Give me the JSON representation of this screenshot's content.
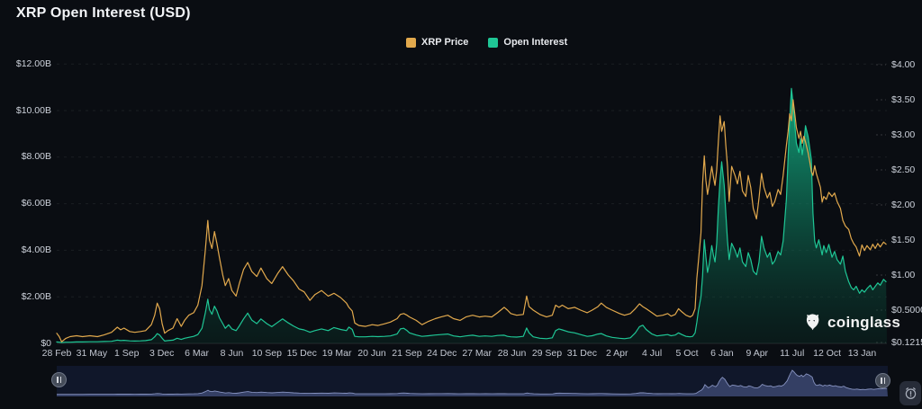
{
  "window": {
    "title": "XRP Open Interest (USD)"
  },
  "legend": {
    "items": [
      {
        "label": "XRP Price",
        "color": "#E2A94D"
      },
      {
        "label": "Open Interest",
        "color": "#1FC695"
      }
    ]
  },
  "watermark": {
    "text": "coinglass"
  },
  "colors": {
    "background": "#0A0D12",
    "price_line": "#E2A94D",
    "open_interest_line": "#1FC695",
    "grid": "rgba(255,255,255,0.07)",
    "axis_text": "#CDD2DB",
    "navigator_bg": "#10172A",
    "navigator_area": "#39446A",
    "navigator_line": "#8793C0"
  },
  "chart_data": {
    "type": "line",
    "title": "XRP Open Interest (USD)",
    "legend_position": "top-center",
    "grid": "horizontal-dashed",
    "x_axis": {
      "tick_labels": [
        "28 Feb",
        "31 May",
        "1 Sep",
        "3 Dec",
        "6 Mar",
        "8 Jun",
        "10 Sep",
        "15 Dec",
        "19 Mar",
        "20 Jun",
        "21 Sep",
        "24 Dec",
        "27 Mar",
        "28 Jun",
        "29 Sep",
        "31 Dec",
        "2 Apr",
        "4 Jul",
        "5 Oct",
        "6 Jan",
        "9 Apr",
        "11 Jul",
        "12 Oct",
        "13 Jan"
      ]
    },
    "left_axis": {
      "tick_labels": [
        "$12.00B",
        "$10.00B",
        "$8.00B",
        "$6.00B",
        "$4.00B",
        "$2.00B",
        "$0"
      ],
      "tick_values_billion": [
        12,
        10,
        8,
        6,
        4,
        2,
        0
      ]
    },
    "right_axis": {
      "tick_labels": [
        "$4.00",
        "$3.50",
        "$3.00",
        "$2.50",
        "$2.00",
        "$1.50",
        "$1.00",
        "$0.5000",
        "$0.1215"
      ],
      "tick_values": [
        4.0,
        3.5,
        3.0,
        2.5,
        2.0,
        1.5,
        1.0,
        0.5,
        0.1215
      ]
    },
    "series": [
      {
        "name": "XRP Price",
        "color": "#E2A94D",
        "axis": "right",
        "unit": "USD"
      },
      {
        "name": "Open Interest",
        "color": "#1FC695",
        "axis": "left",
        "unit": "USD billions",
        "area_fill": true
      }
    ],
    "points_format": [
      "time_fraction",
      "xrp_price_usd",
      "open_interest_usd_billions"
    ],
    "points": [
      [
        0.0,
        0.23,
        0.06
      ],
      [
        0.003,
        0.19,
        0.05
      ],
      [
        0.006,
        0.13,
        0.04
      ],
      [
        0.011,
        0.17,
        0.05
      ],
      [
        0.016,
        0.19,
        0.05
      ],
      [
        0.024,
        0.2,
        0.06
      ],
      [
        0.031,
        0.19,
        0.06
      ],
      [
        0.04,
        0.2,
        0.07
      ],
      [
        0.049,
        0.19,
        0.07
      ],
      [
        0.057,
        0.21,
        0.08
      ],
      [
        0.066,
        0.24,
        0.09
      ],
      [
        0.073,
        0.3,
        0.14
      ],
      [
        0.077,
        0.27,
        0.12
      ],
      [
        0.081,
        0.29,
        0.13
      ],
      [
        0.088,
        0.25,
        0.11
      ],
      [
        0.094,
        0.24,
        0.1
      ],
      [
        0.101,
        0.25,
        0.11
      ],
      [
        0.107,
        0.26,
        0.12
      ],
      [
        0.114,
        0.33,
        0.16
      ],
      [
        0.118,
        0.44,
        0.28
      ],
      [
        0.121,
        0.6,
        0.42
      ],
      [
        0.124,
        0.52,
        0.36
      ],
      [
        0.127,
        0.34,
        0.22
      ],
      [
        0.13,
        0.23,
        0.1
      ],
      [
        0.134,
        0.26,
        0.12
      ],
      [
        0.14,
        0.29,
        0.14
      ],
      [
        0.145,
        0.4,
        0.22
      ],
      [
        0.15,
        0.31,
        0.17
      ],
      [
        0.154,
        0.38,
        0.22
      ],
      [
        0.159,
        0.44,
        0.26
      ],
      [
        0.165,
        0.47,
        0.3
      ],
      [
        0.17,
        0.57,
        0.38
      ],
      [
        0.175,
        0.85,
        0.65
      ],
      [
        0.179,
        1.35,
        1.3
      ],
      [
        0.182,
        1.78,
        1.9
      ],
      [
        0.184,
        1.5,
        1.45
      ],
      [
        0.187,
        1.38,
        1.25
      ],
      [
        0.19,
        1.62,
        1.6
      ],
      [
        0.193,
        1.45,
        1.4
      ],
      [
        0.196,
        1.25,
        1.1
      ],
      [
        0.2,
        1.0,
        0.85
      ],
      [
        0.203,
        0.85,
        0.65
      ],
      [
        0.207,
        0.95,
        0.8
      ],
      [
        0.211,
        0.78,
        0.62
      ],
      [
        0.216,
        0.7,
        0.55
      ],
      [
        0.22,
        0.88,
        0.75
      ],
      [
        0.225,
        1.08,
        1.05
      ],
      [
        0.23,
        1.18,
        1.3
      ],
      [
        0.235,
        1.05,
        1.0
      ],
      [
        0.241,
        0.98,
        0.85
      ],
      [
        0.246,
        1.1,
        1.05
      ],
      [
        0.253,
        0.95,
        0.85
      ],
      [
        0.259,
        0.88,
        0.72
      ],
      [
        0.266,
        1.02,
        0.9
      ],
      [
        0.272,
        1.12,
        1.05
      ],
      [
        0.279,
        1.0,
        0.88
      ],
      [
        0.285,
        0.92,
        0.75
      ],
      [
        0.292,
        0.8,
        0.62
      ],
      [
        0.298,
        0.76,
        0.58
      ],
      [
        0.305,
        0.64,
        0.48
      ],
      [
        0.311,
        0.72,
        0.55
      ],
      [
        0.319,
        0.78,
        0.62
      ],
      [
        0.327,
        0.7,
        0.55
      ],
      [
        0.334,
        0.74,
        0.68
      ],
      [
        0.342,
        0.68,
        0.6
      ],
      [
        0.349,
        0.6,
        0.55
      ],
      [
        0.352,
        0.54,
        0.7
      ],
      [
        0.356,
        0.49,
        0.6
      ],
      [
        0.359,
        0.35,
        0.3
      ],
      [
        0.364,
        0.32,
        0.28
      ],
      [
        0.372,
        0.31,
        0.28
      ],
      [
        0.38,
        0.33,
        0.3
      ],
      [
        0.387,
        0.32,
        0.29
      ],
      [
        0.395,
        0.34,
        0.3
      ],
      [
        0.402,
        0.36,
        0.32
      ],
      [
        0.41,
        0.4,
        0.4
      ],
      [
        0.414,
        0.45,
        0.62
      ],
      [
        0.418,
        0.46,
        0.65
      ],
      [
        0.422,
        0.44,
        0.55
      ],
      [
        0.425,
        0.42,
        0.45
      ],
      [
        0.433,
        0.38,
        0.36
      ],
      [
        0.44,
        0.33,
        0.3
      ],
      [
        0.448,
        0.37,
        0.33
      ],
      [
        0.456,
        0.4,
        0.36
      ],
      [
        0.463,
        0.42,
        0.38
      ],
      [
        0.471,
        0.44,
        0.4
      ],
      [
        0.478,
        0.4,
        0.32
      ],
      [
        0.486,
        0.38,
        0.28
      ],
      [
        0.493,
        0.42,
        0.32
      ],
      [
        0.501,
        0.44,
        0.35
      ],
      [
        0.509,
        0.42,
        0.3
      ],
      [
        0.516,
        0.43,
        0.32
      ],
      [
        0.524,
        0.42,
        0.3
      ],
      [
        0.531,
        0.47,
        0.34
      ],
      [
        0.539,
        0.54,
        0.35
      ],
      [
        0.543,
        0.5,
        0.3
      ],
      [
        0.547,
        0.46,
        0.28
      ],
      [
        0.554,
        0.44,
        0.27
      ],
      [
        0.562,
        0.45,
        0.3
      ],
      [
        0.566,
        0.7,
        0.66
      ],
      [
        0.569,
        0.55,
        0.45
      ],
      [
        0.574,
        0.5,
        0.28
      ],
      [
        0.582,
        0.45,
        0.22
      ],
      [
        0.59,
        0.42,
        0.2
      ],
      [
        0.597,
        0.44,
        0.24
      ],
      [
        0.601,
        0.57,
        0.55
      ],
      [
        0.605,
        0.54,
        0.62
      ],
      [
        0.609,
        0.57,
        0.58
      ],
      [
        0.616,
        0.52,
        0.5
      ],
      [
        0.624,
        0.54,
        0.45
      ],
      [
        0.631,
        0.5,
        0.38
      ],
      [
        0.639,
        0.47,
        0.3
      ],
      [
        0.645,
        0.5,
        0.33
      ],
      [
        0.652,
        0.55,
        0.4
      ],
      [
        0.656,
        0.6,
        0.42
      ],
      [
        0.662,
        0.54,
        0.32
      ],
      [
        0.669,
        0.5,
        0.26
      ],
      [
        0.678,
        0.46,
        0.22
      ],
      [
        0.684,
        0.44,
        0.2
      ],
      [
        0.691,
        0.46,
        0.24
      ],
      [
        0.697,
        0.52,
        0.45
      ],
      [
        0.702,
        0.59,
        0.72
      ],
      [
        0.706,
        0.55,
        0.78
      ],
      [
        0.71,
        0.52,
        0.6
      ],
      [
        0.717,
        0.47,
        0.4
      ],
      [
        0.723,
        0.43,
        0.32
      ],
      [
        0.73,
        0.44,
        0.35
      ],
      [
        0.736,
        0.46,
        0.38
      ],
      [
        0.74,
        0.43,
        0.33
      ],
      [
        0.745,
        0.45,
        0.36
      ],
      [
        0.749,
        0.52,
        0.45
      ],
      [
        0.753,
        0.48,
        0.38
      ],
      [
        0.758,
        0.44,
        0.3
      ],
      [
        0.763,
        0.42,
        0.28
      ],
      [
        0.766,
        0.44,
        0.3
      ],
      [
        0.769,
        0.52,
        0.45
      ],
      [
        0.771,
        0.95,
        0.9
      ],
      [
        0.773,
        1.2,
        1.4
      ],
      [
        0.776,
        1.6,
        2.0
      ],
      [
        0.778,
        2.3,
        2.9
      ],
      [
        0.78,
        2.7,
        4.45
      ],
      [
        0.782,
        2.35,
        3.7
      ],
      [
        0.784,
        2.15,
        3.05
      ],
      [
        0.786,
        2.3,
        3.4
      ],
      [
        0.789,
        2.55,
        4.2
      ],
      [
        0.791,
        2.4,
        3.8
      ],
      [
        0.793,
        2.28,
        3.5
      ],
      [
        0.795,
        2.5,
        4.3
      ],
      [
        0.797,
        2.9,
        5.8
      ],
      [
        0.799,
        3.27,
        7.0
      ],
      [
        0.801,
        3.05,
        7.8
      ],
      [
        0.804,
        3.19,
        6.8
      ],
      [
        0.806,
        2.85,
        5.6
      ],
      [
        0.808,
        2.55,
        4.4
      ],
      [
        0.81,
        2.05,
        3.6
      ],
      [
        0.813,
        2.55,
        4.3
      ],
      [
        0.817,
        2.42,
        4.0
      ],
      [
        0.82,
        2.3,
        3.7
      ],
      [
        0.823,
        2.48,
        4.1
      ],
      [
        0.826,
        2.2,
        3.5
      ],
      [
        0.83,
        2.12,
        3.3
      ],
      [
        0.833,
        2.42,
        3.9
      ],
      [
        0.836,
        2.25,
        3.6
      ],
      [
        0.839,
        1.95,
        3.1
      ],
      [
        0.843,
        1.8,
        2.95
      ],
      [
        0.846,
        2.1,
        3.5
      ],
      [
        0.849,
        2.45,
        4.6
      ],
      [
        0.852,
        2.25,
        4.1
      ],
      [
        0.856,
        2.1,
        3.7
      ],
      [
        0.859,
        2.18,
        3.9
      ],
      [
        0.862,
        1.98,
        3.4
      ],
      [
        0.865,
        2.05,
        3.55
      ],
      [
        0.869,
        2.22,
        3.95
      ],
      [
        0.872,
        2.15,
        3.8
      ],
      [
        0.875,
        2.42,
        4.4
      ],
      [
        0.879,
        2.85,
        6.2
      ],
      [
        0.881,
        3.05,
        8.0
      ],
      [
        0.883,
        3.3,
        9.6
      ],
      [
        0.885,
        3.2,
        10.95
      ],
      [
        0.887,
        3.5,
        10.3
      ],
      [
        0.889,
        3.3,
        9.4
      ],
      [
        0.891,
        3.1,
        8.6
      ],
      [
        0.894,
        2.95,
        8.2
      ],
      [
        0.896,
        3.05,
        8.8
      ],
      [
        0.898,
        2.88,
        8.1
      ],
      [
        0.9,
        2.98,
        8.6
      ],
      [
        0.902,
        2.9,
        9.35
      ],
      [
        0.905,
        2.75,
        8.9
      ],
      [
        0.907,
        2.62,
        8.4
      ],
      [
        0.909,
        2.48,
        7.9
      ],
      [
        0.911,
        2.42,
        5.6
      ],
      [
        0.913,
        2.56,
        4.4
      ],
      [
        0.915,
        2.45,
        4.1
      ],
      [
        0.918,
        2.33,
        4.45
      ],
      [
        0.92,
        2.25,
        4.15
      ],
      [
        0.922,
        2.04,
        3.8
      ],
      [
        0.924,
        2.12,
        4.2
      ],
      [
        0.927,
        2.08,
        3.9
      ],
      [
        0.93,
        2.18,
        4.25
      ],
      [
        0.934,
        2.12,
        3.7
      ],
      [
        0.937,
        2.17,
        3.95
      ],
      [
        0.94,
        2.05,
        3.6
      ],
      [
        0.944,
        1.95,
        3.4
      ],
      [
        0.947,
        1.78,
        3.75
      ],
      [
        0.95,
        1.7,
        3.1
      ],
      [
        0.954,
        1.65,
        2.65
      ],
      [
        0.957,
        1.52,
        2.4
      ],
      [
        0.96,
        1.45,
        2.3
      ],
      [
        0.963,
        1.4,
        2.45
      ],
      [
        0.967,
        1.27,
        2.15
      ],
      [
        0.97,
        1.43,
        2.3
      ],
      [
        0.973,
        1.35,
        2.2
      ],
      [
        0.976,
        1.42,
        2.35
      ],
      [
        0.98,
        1.36,
        2.5
      ],
      [
        0.983,
        1.44,
        2.3
      ],
      [
        0.986,
        1.38,
        2.45
      ],
      [
        0.989,
        1.45,
        2.6
      ],
      [
        0.992,
        1.4,
        2.5
      ],
      [
        0.996,
        1.47,
        2.75
      ],
      [
        0.999,
        1.44,
        2.65
      ]
    ]
  }
}
